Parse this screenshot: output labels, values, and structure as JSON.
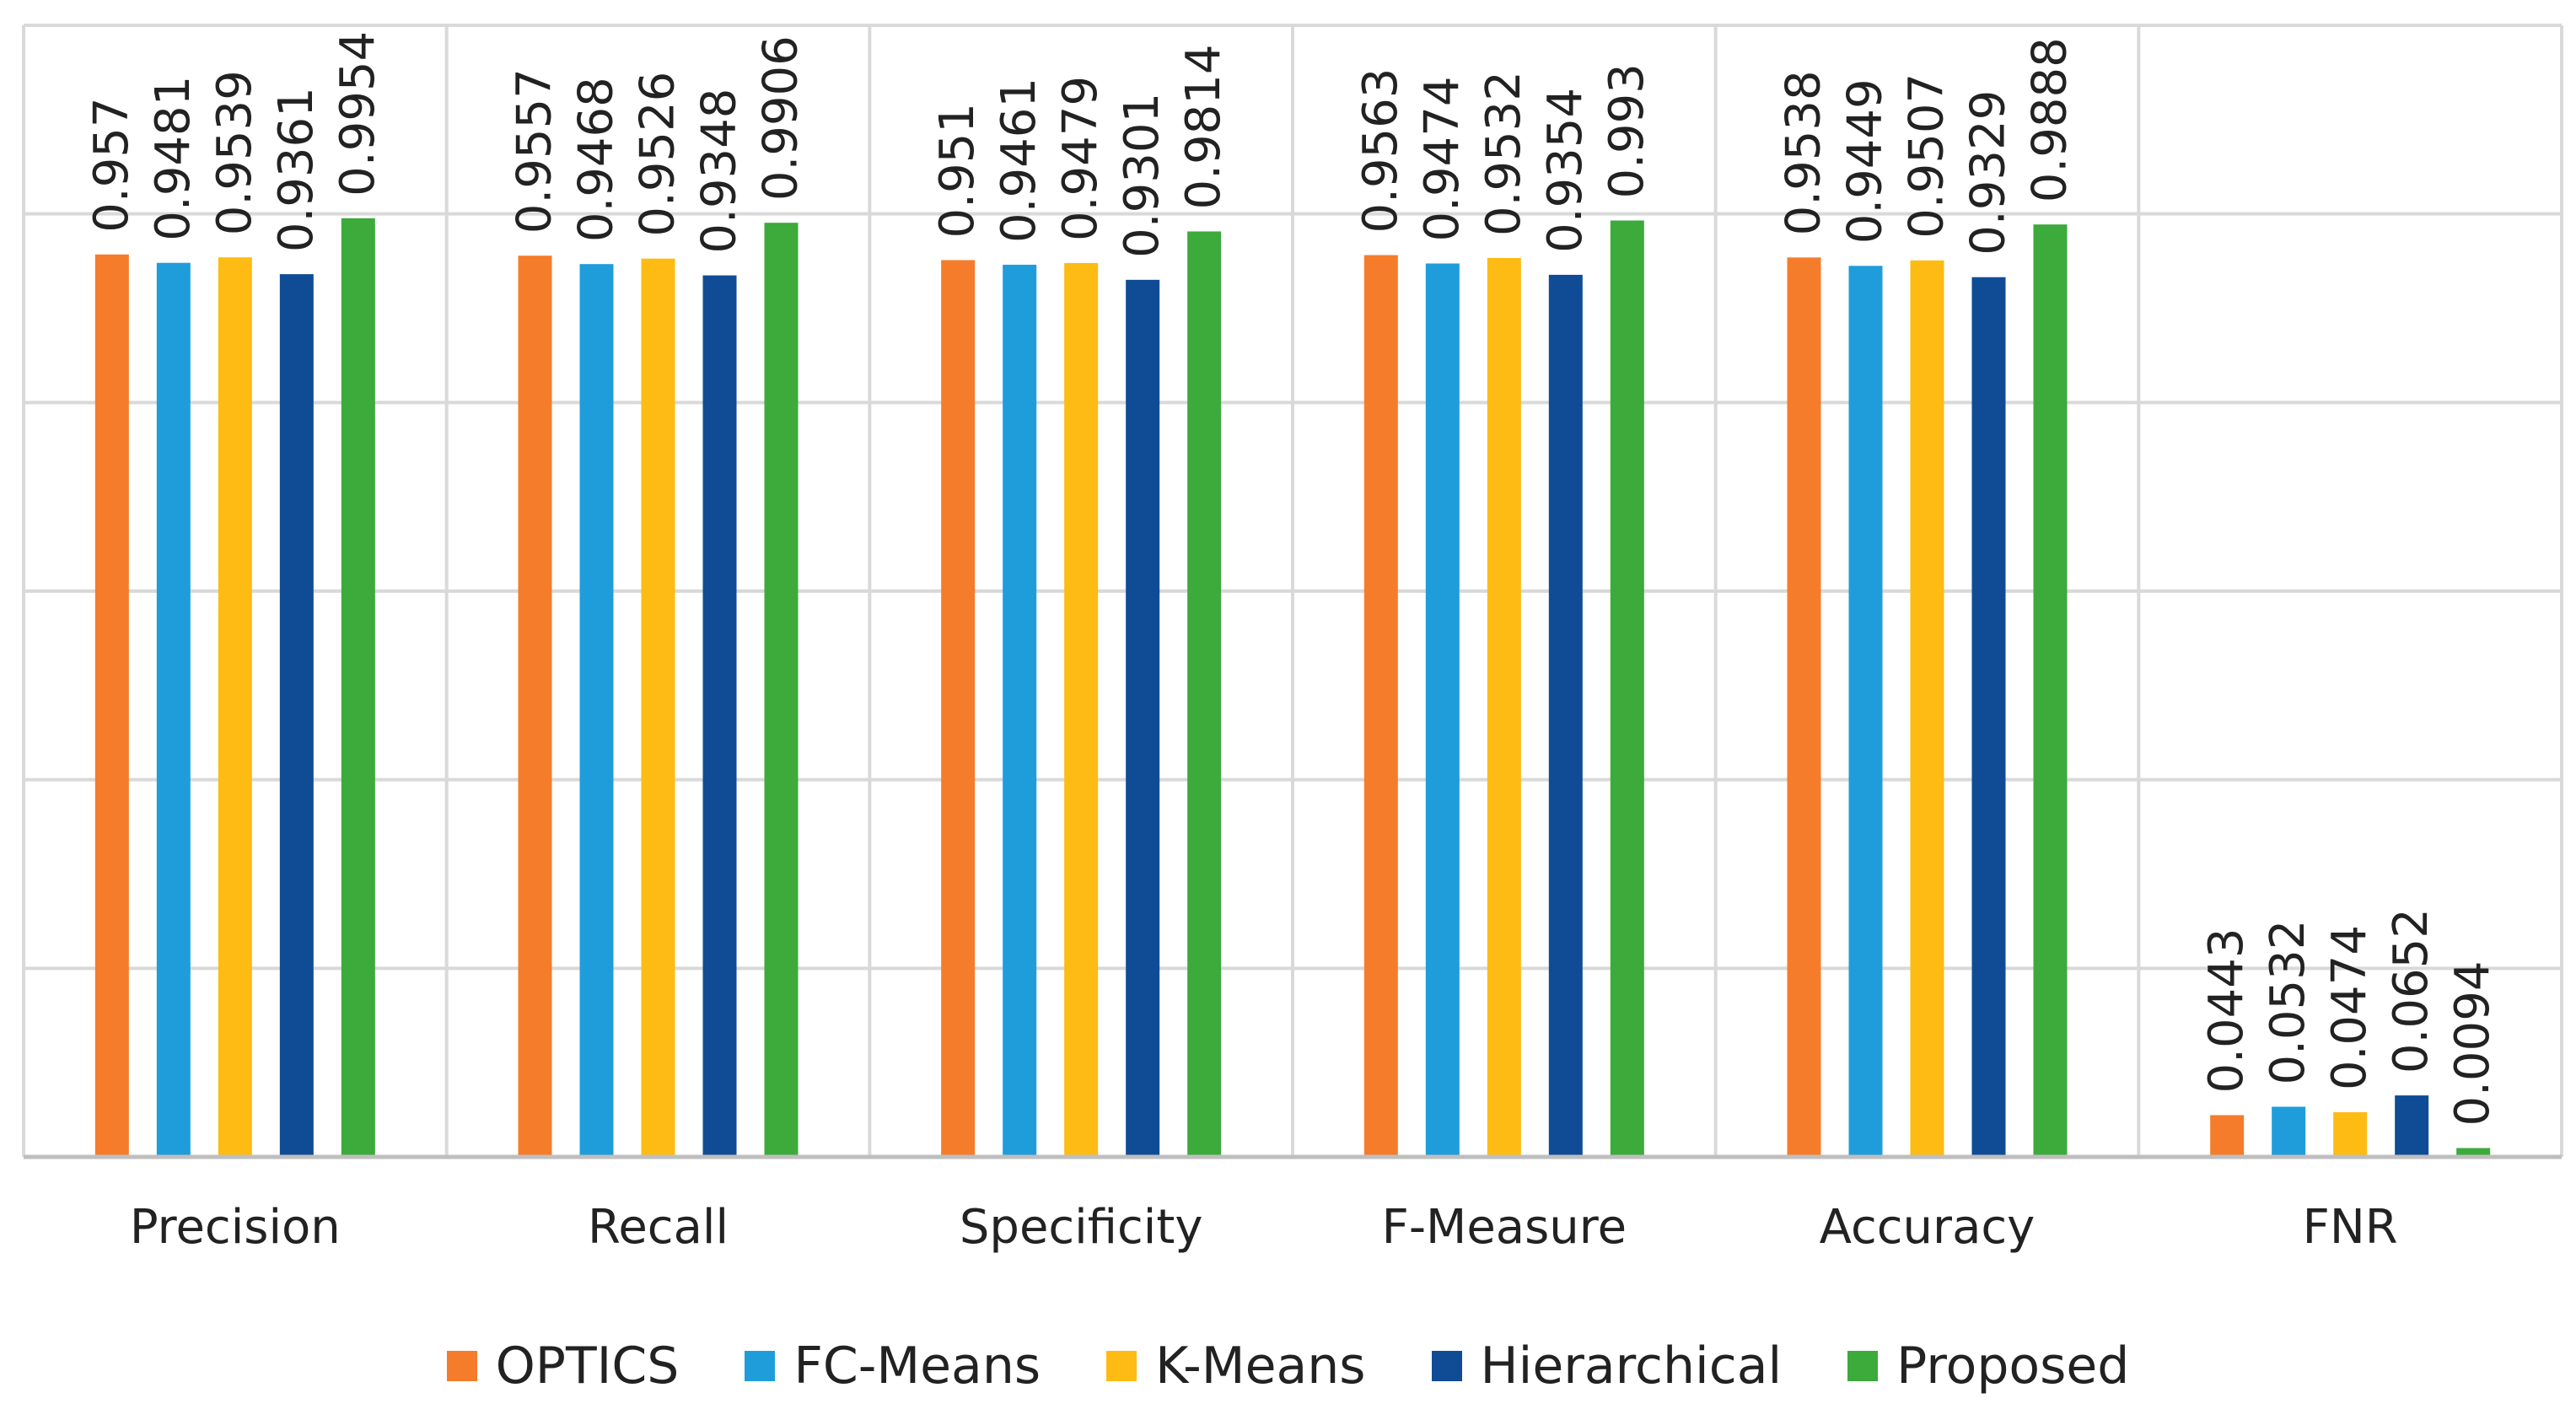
{
  "chart_data": {
    "type": "bar",
    "title": "",
    "xlabel": "",
    "ylabel": "",
    "ylim": [
      0,
      1.2
    ],
    "y_gridline_step": 0.2,
    "y_tick_labels_shown": false,
    "grid": true,
    "legend_position": "bottom",
    "categories": [
      "Precision",
      "Recall",
      "Specificity",
      "F-Measure",
      "Accuracy",
      "FNR"
    ],
    "series": [
      {
        "name": "OPTICS",
        "color": "#F57C2A",
        "values": [
          0.957,
          0.9557,
          0.951,
          0.9563,
          0.9538,
          0.0443
        ],
        "labels": [
          "0.957",
          "0.9557",
          "0.951",
          "0.9563",
          "0.9538",
          "0.0443"
        ]
      },
      {
        "name": "FC-Means",
        "color": "#1F9DDB",
        "values": [
          0.9481,
          0.9468,
          0.9461,
          0.9474,
          0.9449,
          0.0532
        ],
        "labels": [
          "0.9481",
          "0.9468",
          "0.9461",
          "0.9474",
          "0.9449",
          "0.0532"
        ]
      },
      {
        "name": "K-Means",
        "color": "#FDBB13",
        "values": [
          0.9539,
          0.9526,
          0.9479,
          0.9532,
          0.9507,
          0.0474
        ],
        "labels": [
          "0.9539",
          "0.9526",
          "0.9479",
          "0.9532",
          "0.9507",
          "0.0474"
        ]
      },
      {
        "name": "Hierarchical",
        "color": "#0F4C95",
        "values": [
          0.9361,
          0.9348,
          0.9301,
          0.9354,
          0.9329,
          0.0652
        ],
        "labels": [
          "0.9361",
          "0.9348",
          "0.9301",
          "0.9354",
          "0.9329",
          "0.0652"
        ]
      },
      {
        "name": "Proposed",
        "color": "#3DAA3C",
        "values": [
          0.9954,
          0.9906,
          0.9814,
          0.993,
          0.9888,
          0.0094
        ],
        "labels": [
          "0.9954",
          "0.9906",
          "0.9814",
          "0.993",
          "0.9888",
          "0.0094"
        ]
      }
    ],
    "grid_color": "#D9D9D9",
    "axis_color": "#BFBFBF"
  }
}
